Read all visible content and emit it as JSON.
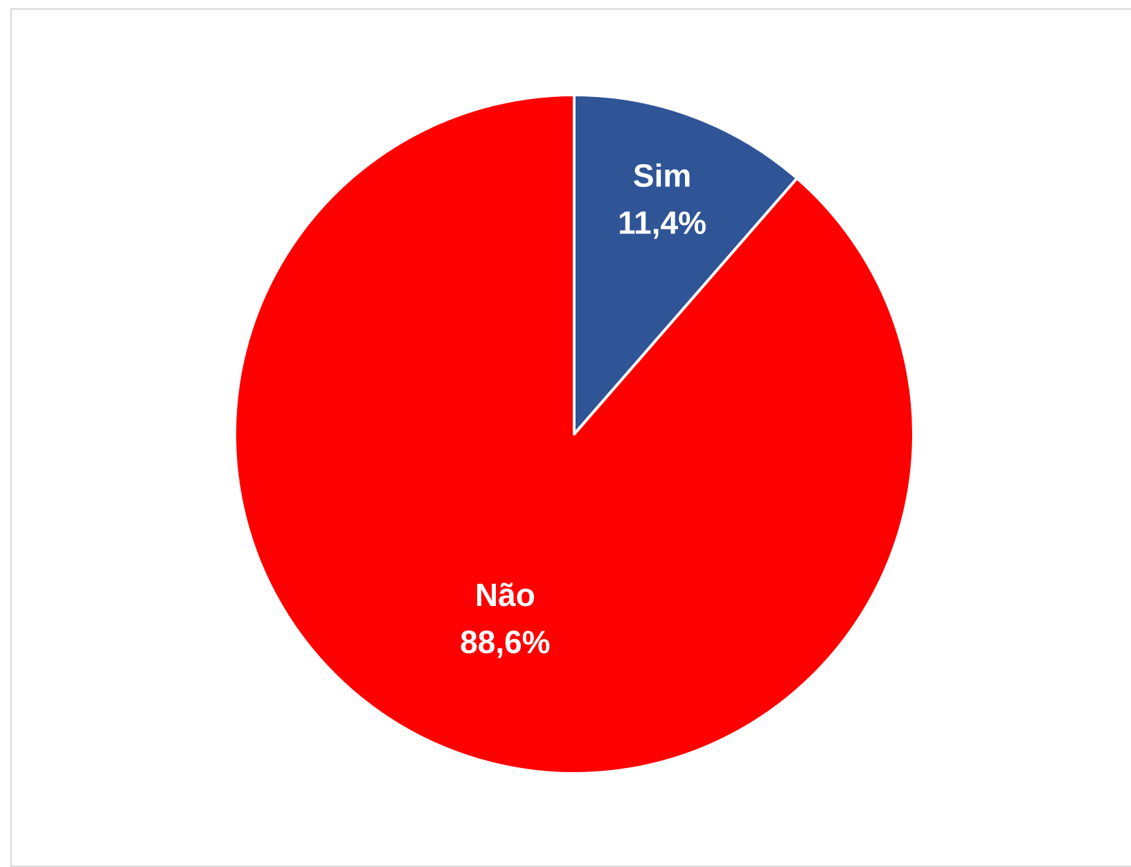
{
  "chart_data": {
    "type": "pie",
    "start_angle_deg": 0,
    "direction": "clockwise",
    "slices": [
      {
        "label": "Sim",
        "value": 11.4,
        "value_label": "11,4%",
        "color": "#2F5597"
      },
      {
        "label": "Não",
        "value": 88.6,
        "value_label": "88,6%",
        "color": "#FF0000"
      }
    ],
    "slice_border_color": "#ffffff",
    "legend": "none"
  }
}
